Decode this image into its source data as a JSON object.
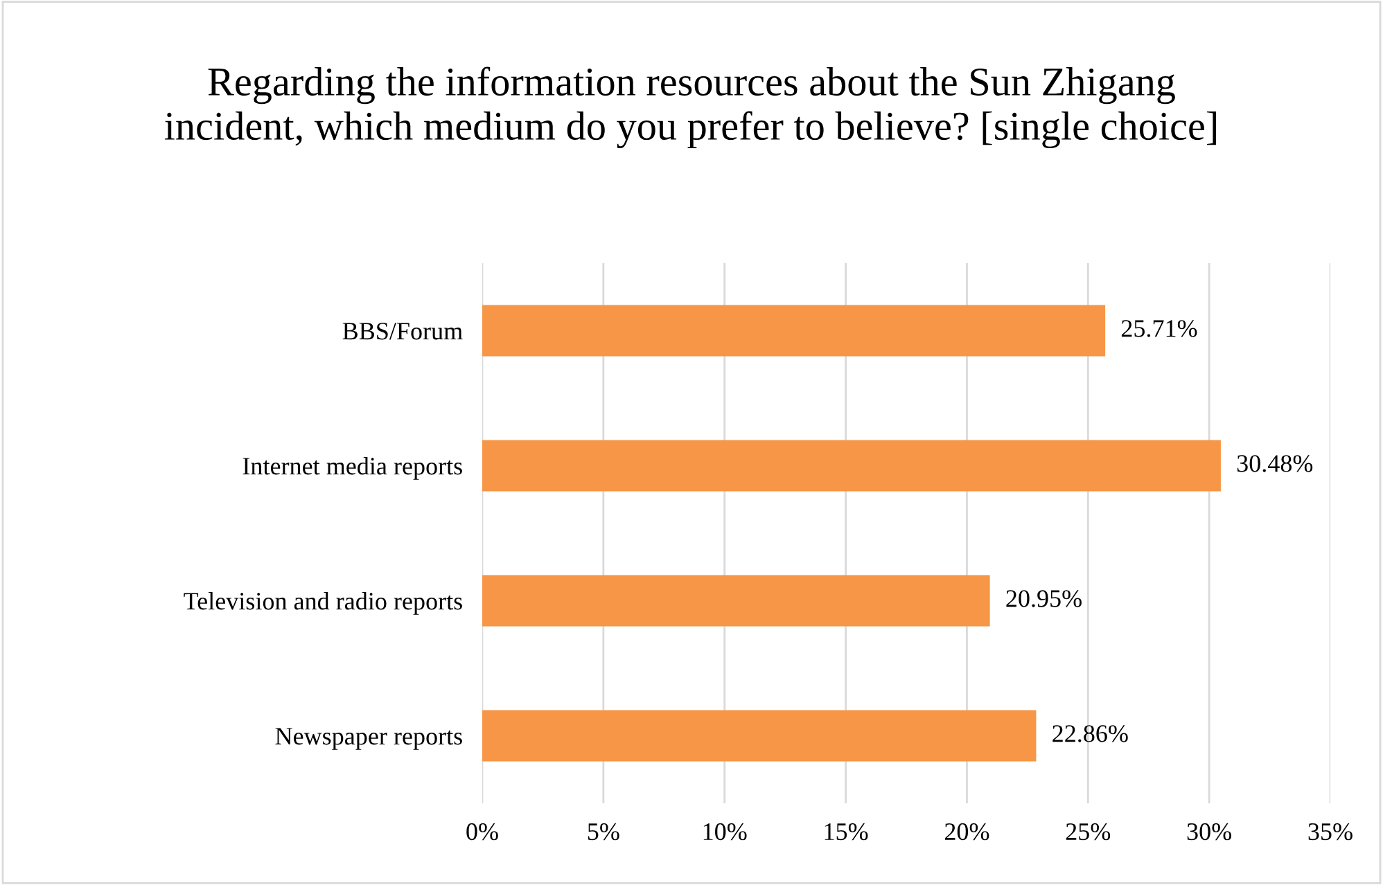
{
  "chart_data": {
    "type": "bar",
    "orientation": "horizontal",
    "title": "Regarding the information resources about the Sun Zhigang incident, which medium do you prefer to believe? [single choice]",
    "categories": [
      "BBS/Forum",
      "Internet media reports",
      "Television and radio reports",
      "Newspaper reports"
    ],
    "values": [
      25.71,
      30.48,
      20.95,
      22.86
    ],
    "value_labels": [
      "25.71%",
      "30.48%",
      "20.95%",
      "22.86%"
    ],
    "color": "#f79646",
    "xlim": [
      0,
      35
    ],
    "xticks": [
      {
        "value": 0,
        "label": "0%"
      },
      {
        "value": 5,
        "label": "5%"
      },
      {
        "value": 10,
        "label": "10%"
      },
      {
        "value": 15,
        "label": "15%"
      },
      {
        "value": 20,
        "label": "20%"
      },
      {
        "value": 25,
        "label": "25%"
      },
      {
        "value": 30,
        "label": "30%"
      },
      {
        "value": 35,
        "label": "35%"
      }
    ],
    "grid": "x",
    "legend": false
  }
}
